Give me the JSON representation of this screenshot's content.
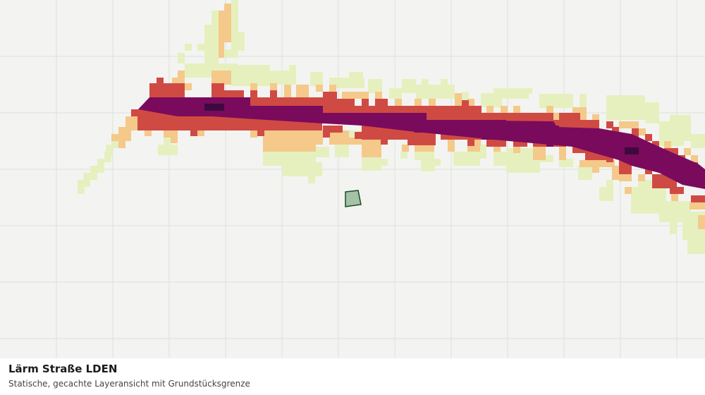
{
  "map": {
    "title": "Lärm Straße LDEN",
    "subtitle": "Statische, gecachte Layeransicht mit Grundstücksgrenze",
    "legend_colors": {
      "background": "#f3f4f1",
      "grid": "#dedfdc",
      "level_1": "#e6f0bf",
      "level_2": "#f4c98a",
      "level_3": "#d04a44",
      "level_4": "#7a0a5c",
      "level_5": "#3d0a3f",
      "parcel_fill": "#a3c2a6",
      "parcel_stroke": "#1d4b24"
    }
  }
}
